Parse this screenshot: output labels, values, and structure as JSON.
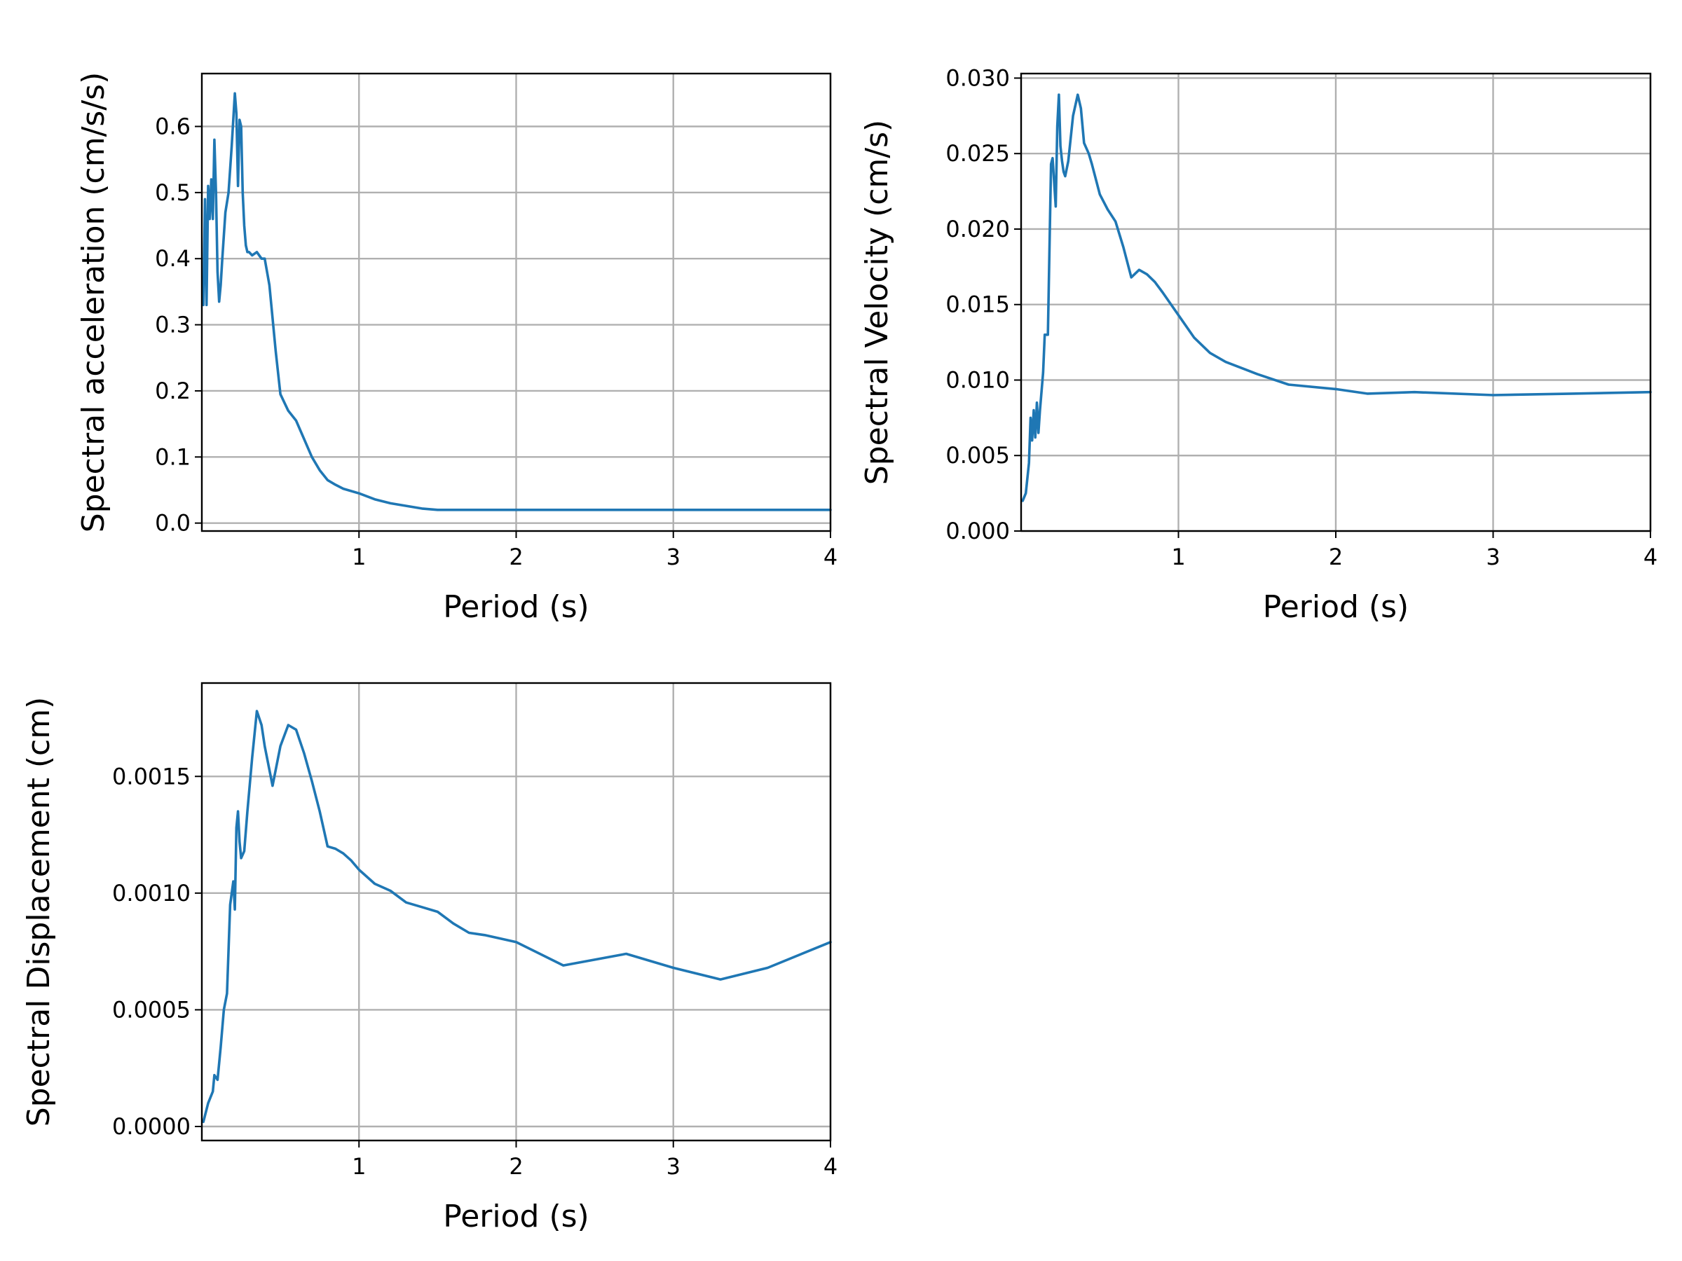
{
  "colors": {
    "series": "#1f77b4",
    "grid": "#b0b0b0",
    "axes": "#000000",
    "background": "#ffffff"
  },
  "chart_data": [
    {
      "type": "line",
      "xlabel": "Period (s)",
      "ylabel": "Spectral acceleration (cm/s/s)",
      "xlim": [
        0.0,
        4.0
      ],
      "ylim": [
        -0.012,
        0.68
      ],
      "xticks": [
        1,
        2,
        3,
        4
      ],
      "xtick_labels": [
        "1",
        "2",
        "3",
        "4"
      ],
      "yticks": [
        0.0,
        0.1,
        0.2,
        0.3,
        0.4,
        0.5,
        0.6
      ],
      "ytick_labels": [
        "0.0",
        "0.1",
        "0.2",
        "0.3",
        "0.4",
        "0.5",
        "0.6"
      ],
      "grid": true,
      "series": [
        {
          "x": [
            0.01,
            0.02,
            0.03,
            0.04,
            0.05,
            0.06,
            0.07,
            0.08,
            0.09,
            0.1,
            0.11,
            0.12,
            0.13,
            0.15,
            0.17,
            0.19,
            0.21,
            0.22,
            0.23,
            0.24,
            0.25,
            0.26,
            0.27,
            0.28,
            0.29,
            0.3,
            0.32,
            0.35,
            0.38,
            0.4,
            0.43,
            0.45,
            0.47,
            0.5,
            0.55,
            0.6,
            0.7,
            0.75,
            0.8,
            0.85,
            0.9,
            1.0,
            1.1,
            1.2,
            1.4,
            1.5,
            2.0,
            2.5,
            3.0,
            3.5,
            4.0
          ],
          "y": [
            0.33,
            0.49,
            0.33,
            0.51,
            0.46,
            0.52,
            0.46,
            0.58,
            0.5,
            0.38,
            0.335,
            0.36,
            0.4,
            0.47,
            0.5,
            0.57,
            0.65,
            0.62,
            0.51,
            0.61,
            0.6,
            0.5,
            0.45,
            0.42,
            0.41,
            0.41,
            0.405,
            0.41,
            0.4,
            0.4,
            0.36,
            0.31,
            0.26,
            0.195,
            0.17,
            0.155,
            0.1,
            0.08,
            0.065,
            0.058,
            0.052,
            0.045,
            0.036,
            0.03,
            0.022,
            0.02,
            0.02,
            0.02,
            0.02,
            0.02,
            0.02
          ]
        }
      ]
    },
    {
      "type": "line",
      "xlabel": "Period (s)",
      "ylabel": "Spectral Velocity (cm/s)",
      "xlim": [
        0.0,
        4.0
      ],
      "ylim": [
        0.0,
        0.0303
      ],
      "xticks": [
        1,
        2,
        3,
        4
      ],
      "xtick_labels": [
        "1",
        "2",
        "3",
        "4"
      ],
      "yticks": [
        0.0,
        0.005,
        0.01,
        0.015,
        0.02,
        0.025,
        0.03
      ],
      "ytick_labels": [
        "0.000",
        "0.005",
        "0.010",
        "0.015",
        "0.020",
        "0.025",
        "0.030"
      ],
      "grid": true,
      "series": [
        {
          "x": [
            0.01,
            0.03,
            0.05,
            0.06,
            0.07,
            0.08,
            0.09,
            0.1,
            0.11,
            0.12,
            0.14,
            0.15,
            0.17,
            0.19,
            0.2,
            0.22,
            0.23,
            0.24,
            0.25,
            0.26,
            0.27,
            0.28,
            0.3,
            0.33,
            0.36,
            0.38,
            0.4,
            0.43,
            0.45,
            0.5,
            0.55,
            0.6,
            0.65,
            0.7,
            0.75,
            0.8,
            0.85,
            0.9,
            1.0,
            1.1,
            1.2,
            1.3,
            1.5,
            1.7,
            2.0,
            2.2,
            2.5,
            3.0,
            3.5,
            4.0
          ],
          "y": [
            0.002,
            0.0025,
            0.0045,
            0.0075,
            0.006,
            0.008,
            0.0062,
            0.0085,
            0.0065,
            0.008,
            0.0105,
            0.013,
            0.013,
            0.0243,
            0.0247,
            0.0215,
            0.0268,
            0.0289,
            0.0255,
            0.0245,
            0.0238,
            0.0235,
            0.0245,
            0.0275,
            0.0289,
            0.028,
            0.0257,
            0.025,
            0.0243,
            0.0223,
            0.0213,
            0.0205,
            0.0188,
            0.0168,
            0.0173,
            0.017,
            0.0165,
            0.0158,
            0.0143,
            0.0128,
            0.0118,
            0.0112,
            0.0104,
            0.0097,
            0.0094,
            0.0091,
            0.0092,
            0.009,
            0.0091,
            0.0092
          ]
        }
      ]
    },
    {
      "type": "line",
      "xlabel": "Period (s)",
      "ylabel": "Spectral Displacement (cm)",
      "xlim": [
        0.0,
        4.0
      ],
      "ylim": [
        -6e-05,
        0.0019
      ],
      "xticks": [
        1,
        2,
        3,
        4
      ],
      "xtick_labels": [
        "1",
        "2",
        "3",
        "4"
      ],
      "yticks": [
        0.0,
        0.0005,
        0.001,
        0.0015
      ],
      "ytick_labels": [
        "0.0000",
        "0.0005",
        "0.0010",
        "0.0015"
      ],
      "grid": true,
      "series": [
        {
          "x": [
            0.01,
            0.04,
            0.07,
            0.08,
            0.1,
            0.12,
            0.14,
            0.16,
            0.18,
            0.2,
            0.21,
            0.22,
            0.23,
            0.24,
            0.25,
            0.27,
            0.29,
            0.32,
            0.35,
            0.38,
            0.4,
            0.45,
            0.5,
            0.55,
            0.6,
            0.65,
            0.7,
            0.75,
            0.8,
            0.85,
            0.9,
            0.95,
            1.0,
            1.1,
            1.2,
            1.3,
            1.4,
            1.5,
            1.6,
            1.7,
            1.8,
            2.0,
            2.3,
            2.7,
            3.0,
            3.3,
            3.6,
            4.0
          ],
          "y": [
            2e-05,
            0.0001,
            0.00015,
            0.00022,
            0.0002,
            0.00034,
            0.0005,
            0.00057,
            0.00095,
            0.00105,
            0.00093,
            0.00128,
            0.00135,
            0.00122,
            0.00115,
            0.00118,
            0.00135,
            0.00158,
            0.00178,
            0.00172,
            0.00163,
            0.00146,
            0.00163,
            0.00172,
            0.0017,
            0.0016,
            0.00148,
            0.00135,
            0.0012,
            0.00119,
            0.00117,
            0.00114,
            0.0011,
            0.00104,
            0.00101,
            0.00096,
            0.00094,
            0.00092,
            0.00087,
            0.00083,
            0.00082,
            0.00079,
            0.00069,
            0.00074,
            0.00068,
            0.00063,
            0.00068,
            0.00079
          ]
        }
      ]
    }
  ]
}
